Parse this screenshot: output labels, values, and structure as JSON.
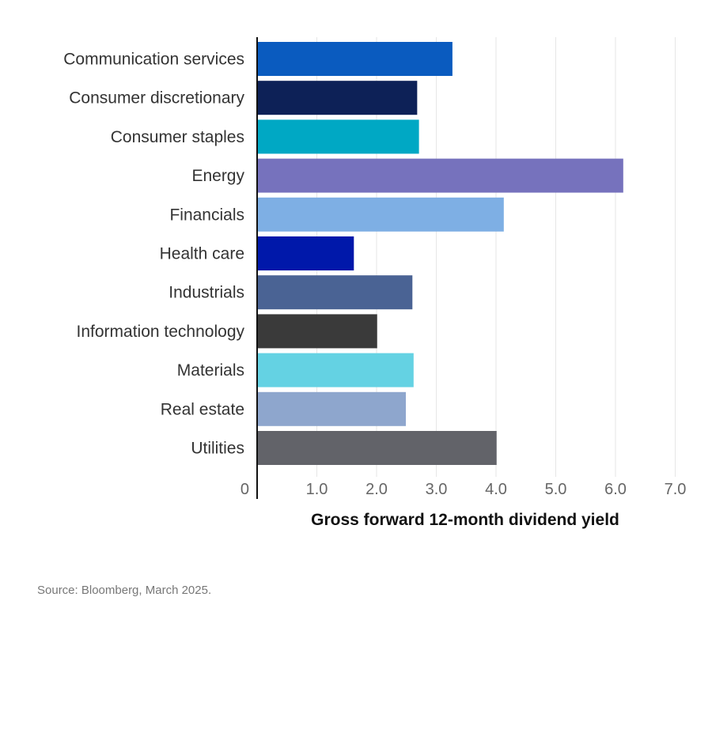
{
  "chart_data": {
    "type": "bar",
    "orientation": "horizontal",
    "title": "",
    "xlabel": "Gross forward 12-month dividend yield",
    "ylabel": "",
    "xlim": [
      0,
      7.0
    ],
    "xticks": [
      "0",
      "1.0",
      "2.0",
      "3.0",
      "4.0",
      "5.0",
      "6.0",
      "7.0"
    ],
    "xtick_values": [
      0,
      1,
      2,
      3,
      4,
      5,
      6,
      7
    ],
    "grid": true,
    "categories": [
      "Communication services",
      "Consumer discretionary",
      "Consumer staples",
      "Energy",
      "Financials",
      "Health care",
      "Industrials",
      "Information technology",
      "Materials",
      "Real estate",
      "Utilities"
    ],
    "values": [
      3.27,
      2.68,
      2.71,
      6.13,
      4.13,
      1.62,
      2.6,
      2.01,
      2.62,
      2.49,
      4.01
    ],
    "colors": [
      "#0a5bbf",
      "#0d2157",
      "#00a8c4",
      "#7672bd",
      "#7eafe4",
      "#0018aa",
      "#4a6394",
      "#3a3a3a",
      "#64d2e3",
      "#8ea6cd",
      "#626369"
    ]
  },
  "source": "Source: Bloomberg, March 2025."
}
